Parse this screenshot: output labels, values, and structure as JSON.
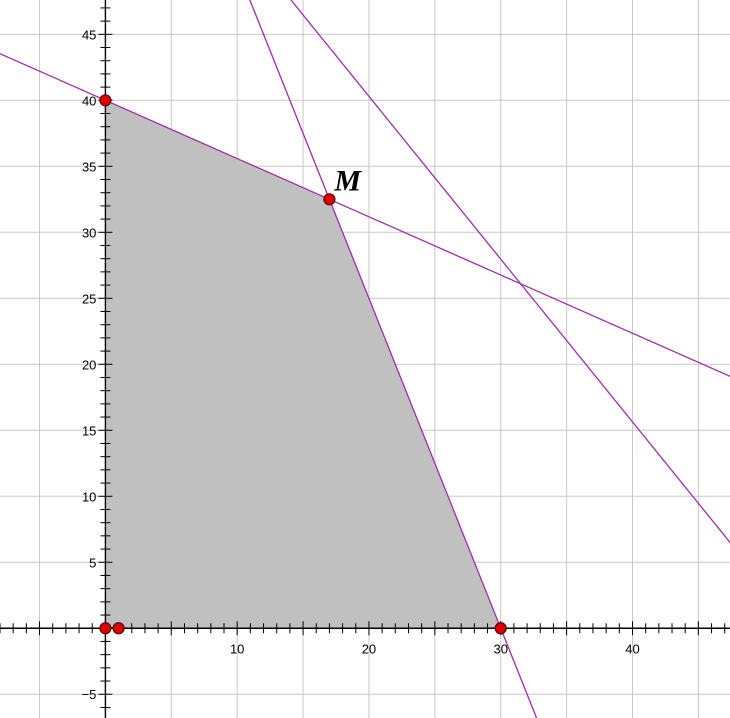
{
  "chart_data": {
    "type": "line",
    "title": "",
    "xlabel": "",
    "ylabel": "",
    "xlim": [
      -8,
      47.4
    ],
    "ylim": [
      -6.8,
      47.6
    ],
    "grid": true,
    "x_ticks": [
      10,
      20,
      30,
      40
    ],
    "y_ticks": [
      -5,
      5,
      10,
      15,
      20,
      25,
      30,
      35,
      40,
      45
    ],
    "feasible_region": [
      [
        0,
        0
      ],
      [
        0,
        40
      ],
      [
        17,
        32.5
      ],
      [
        30,
        0
      ]
    ],
    "lines": [
      {
        "name": "boundary-a",
        "p1": [
          0,
          40
        ],
        "p2": [
          17,
          32.5
        ]
      },
      {
        "name": "boundary-b",
        "p1": [
          17,
          32.5
        ],
        "p2": [
          30,
          0
        ]
      },
      {
        "name": "level-line",
        "p1": [
          17,
          44
        ],
        "p2": [
          32,
          25.5
        ]
      }
    ],
    "points": [
      {
        "name": "origin",
        "x": 0,
        "y": 0,
        "label": ""
      },
      {
        "name": "axis-point",
        "x": 1,
        "y": 0,
        "label": ""
      },
      {
        "name": "y-intercept",
        "x": 0,
        "y": 40,
        "label": ""
      },
      {
        "name": "vertex-m",
        "x": 17,
        "y": 32.5,
        "label": "M"
      },
      {
        "name": "x-intercept",
        "x": 30,
        "y": 0,
        "label": ""
      }
    ],
    "colors": {
      "region": "#c0c0c0",
      "line": "#9a2fa6",
      "point": "#dd0000",
      "grid": "#c8c8c8",
      "axis": "#000000"
    }
  }
}
